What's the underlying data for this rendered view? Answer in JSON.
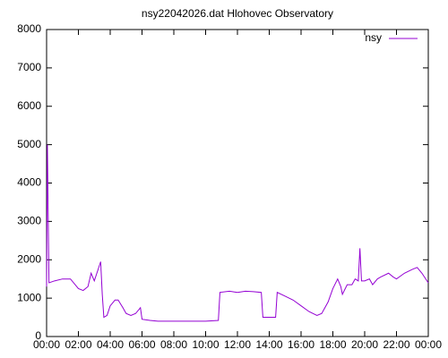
{
  "chart_data": {
    "type": "line",
    "title": "nsy22042026.dat Hlohovec Observatory",
    "x": [
      0,
      0.05,
      0.15,
      0.5,
      1.0,
      1.5,
      2.0,
      2.3,
      2.6,
      2.8,
      3.0,
      3.2,
      3.4,
      3.5,
      3.6,
      3.8,
      4.0,
      4.3,
      4.5,
      4.8,
      5.0,
      5.3,
      5.6,
      5.9,
      6.0,
      6.5,
      7,
      8,
      9,
      10,
      10.8,
      10.9,
      11.5,
      12,
      12.5,
      13,
      13.5,
      13.6,
      14,
      14.4,
      14.5,
      15,
      15.5,
      16,
      16.5,
      17,
      17.3,
      17.7,
      18,
      18.3,
      18.5,
      18.6,
      18.9,
      19.2,
      19.4,
      19.6,
      19.7,
      19.8,
      20.0,
      20.3,
      20.5,
      20.8,
      21,
      21.5,
      21.8,
      22,
      22.5,
      23,
      23.3,
      23.6,
      24
    ],
    "series": [
      {
        "name": "nsy",
        "color": "#9400d3",
        "values": [
          1300,
          5000,
          1400,
          1450,
          1500,
          1500,
          1250,
          1200,
          1300,
          1650,
          1450,
          1700,
          1950,
          1100,
          500,
          550,
          800,
          950,
          950,
          750,
          600,
          550,
          600,
          750,
          450,
          420,
          400,
          400,
          400,
          400,
          420,
          1150,
          1180,
          1150,
          1180,
          1170,
          1150,
          500,
          500,
          500,
          1150,
          1050,
          950,
          800,
          650,
          550,
          600,
          900,
          1250,
          1500,
          1300,
          1100,
          1350,
          1350,
          1500,
          1450,
          2300,
          1450,
          1450,
          1500,
          1350,
          1500,
          1550,
          1650,
          1550,
          1500,
          1650,
          1750,
          1800,
          1650,
          1400
        ]
      }
    ],
    "xlim": [
      0,
      24
    ],
    "xticks": [
      {
        "value": 0,
        "label": "00:00"
      },
      {
        "value": 2,
        "label": "02:00"
      },
      {
        "value": 4,
        "label": "04:00"
      },
      {
        "value": 6,
        "label": "06:00"
      },
      {
        "value": 8,
        "label": "08:00"
      },
      {
        "value": 10,
        "label": "10:00"
      },
      {
        "value": 12,
        "label": "12:00"
      },
      {
        "value": 14,
        "label": "14:00"
      },
      {
        "value": 16,
        "label": "16:00"
      },
      {
        "value": 18,
        "label": "18:00"
      },
      {
        "value": 20,
        "label": "20:00"
      },
      {
        "value": 22,
        "label": "22:00"
      },
      {
        "value": 24,
        "label": "00:00"
      }
    ],
    "ylim": [
      0,
      8000
    ],
    "yticks": [
      0,
      1000,
      2000,
      3000,
      4000,
      5000,
      6000,
      7000,
      8000
    ],
    "legend": "top-right"
  }
}
